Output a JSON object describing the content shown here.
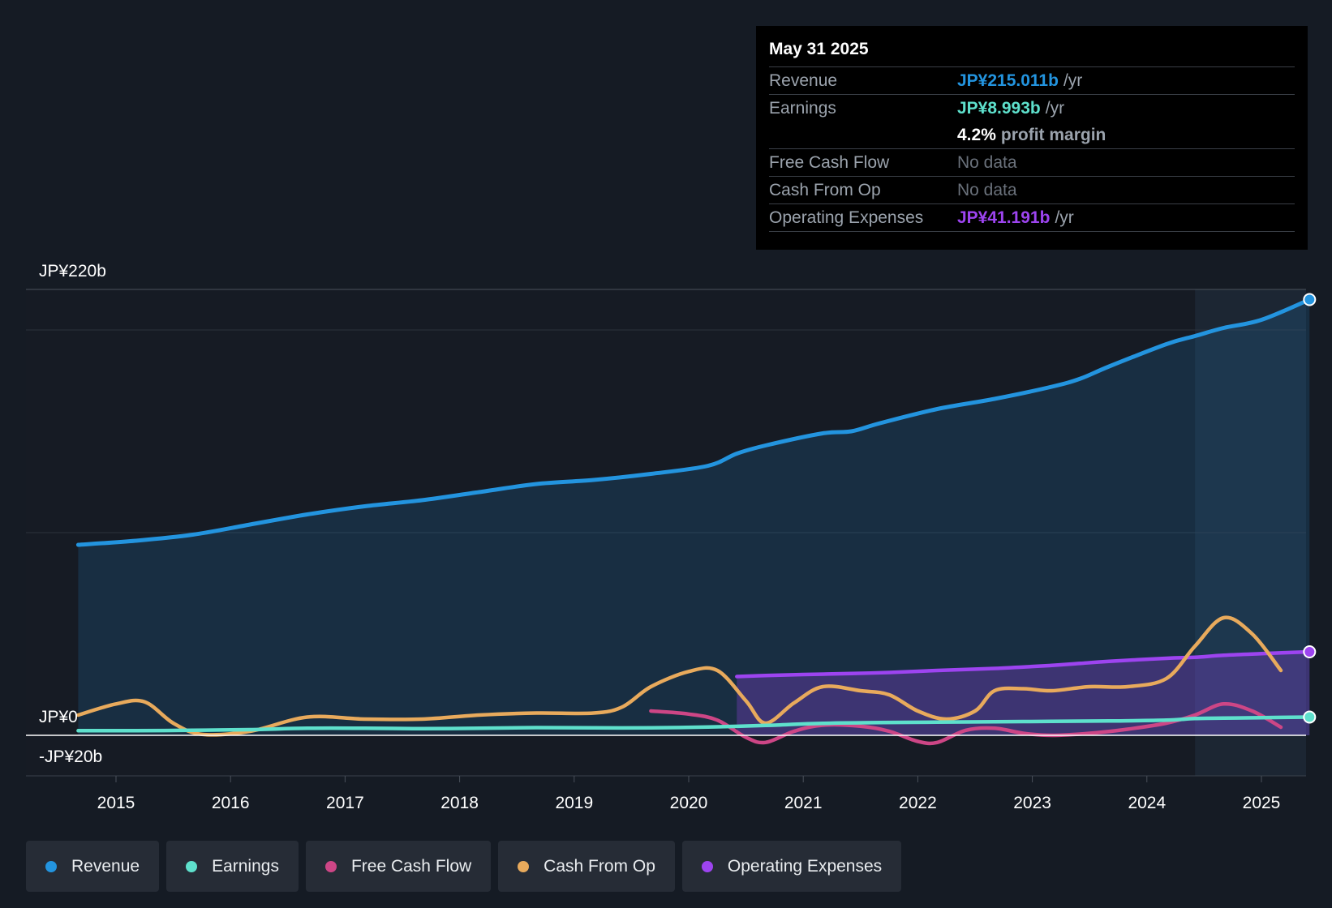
{
  "tooltip": {
    "date": "May 31 2025",
    "revenue": {
      "label": "Revenue",
      "value": "JP¥215.011b",
      "unit": "/yr"
    },
    "earnings": {
      "label": "Earnings",
      "value": "JP¥8.993b",
      "unit": "/yr"
    },
    "margin": {
      "value": "4.2%",
      "text": "profit margin"
    },
    "fcf": {
      "label": "Free Cash Flow",
      "value": "No data"
    },
    "cfo": {
      "label": "Cash From Op",
      "value": "No data"
    },
    "opex": {
      "label": "Operating Expenses",
      "value": "JP¥41.191b",
      "unit": "/yr"
    }
  },
  "legend": {
    "revenue": "Revenue",
    "earnings": "Earnings",
    "fcf": "Free Cash Flow",
    "cfo": "Cash From Op",
    "opex": "Operating Expenses"
  },
  "colors": {
    "revenue": "#2394df",
    "earnings": "#5ee0cc",
    "fcf": "#cd4686",
    "cfo": "#e8aa5c",
    "opex": "#9d44f0"
  },
  "chart_data": {
    "type": "line",
    "title": "",
    "ylim": [
      -20,
      220
    ],
    "y_tick_labels": [
      "JP¥220b",
      "JP¥0",
      "-JP¥20b"
    ],
    "x_tick_labels": [
      "2015",
      "2016",
      "2017",
      "2018",
      "2019",
      "2020",
      "2021",
      "2022",
      "2023",
      "2024",
      "2025"
    ],
    "series": [
      {
        "name": "Revenue",
        "key": "revenue",
        "area": true,
        "end_marker": true,
        "x": [
          2014.67,
          2015.17,
          2015.67,
          2016.17,
          2016.67,
          2017.17,
          2017.67,
          2018.17,
          2018.67,
          2019.17,
          2019.67,
          2020.17,
          2020.42,
          2020.67,
          2021.17,
          2021.42,
          2021.67,
          2022.17,
          2022.67,
          2023.17,
          2023.42,
          2023.67,
          2024.17,
          2024.42,
          2024.67,
          2025.0,
          2025.42
        ],
        "values": [
          94,
          96,
          99,
          104,
          109,
          113,
          116,
          120,
          124,
          126,
          129,
          133,
          139,
          143,
          149,
          150,
          154,
          161,
          166,
          172,
          176,
          182,
          193,
          197,
          201,
          205,
          215
        ]
      },
      {
        "name": "Earnings",
        "key": "earnings",
        "end_marker": true,
        "x": [
          2014.67,
          2015.17,
          2015.67,
          2016.17,
          2016.67,
          2017.17,
          2017.67,
          2018.17,
          2018.67,
          2019.17,
          2019.67,
          2020.17,
          2020.67,
          2021.17,
          2021.67,
          2022.17,
          2022.67,
          2023.17,
          2023.67,
          2024.17,
          2024.42,
          2024.67,
          2025.0,
          2025.42
        ],
        "values": [
          2.3,
          2.3,
          2.5,
          2.8,
          3.5,
          3.5,
          3.3,
          3.5,
          3.8,
          3.7,
          3.7,
          4.1,
          4.9,
          5.9,
          6.3,
          6.5,
          6.7,
          6.9,
          7.1,
          7.5,
          8.3,
          8.5,
          8.7,
          9.0
        ]
      },
      {
        "name": "Free Cash Flow",
        "key": "fcf",
        "x": [
          2019.67,
          2020.0,
          2020.25,
          2020.5,
          2020.67,
          2020.92,
          2021.17,
          2021.5,
          2021.75,
          2022.0,
          2022.17,
          2022.42,
          2022.67,
          2022.92,
          2023.17,
          2023.5,
          2023.83,
          2024.17,
          2024.42,
          2024.67,
          2024.92,
          2025.17
        ],
        "values": [
          12,
          10.5,
          7.5,
          -1,
          -3.5,
          2,
          5,
          4.5,
          2,
          -3,
          -3.5,
          2.5,
          3.5,
          1,
          0,
          1,
          3,
          6,
          10,
          15.5,
          12,
          4
        ]
      },
      {
        "name": "Cash From Op",
        "key": "cfo",
        "x": [
          2014.67,
          2015.0,
          2015.25,
          2015.5,
          2015.75,
          2016.17,
          2016.67,
          2017.17,
          2017.67,
          2018.17,
          2018.67,
          2019.17,
          2019.42,
          2019.67,
          2020.0,
          2020.25,
          2020.5,
          2020.67,
          2020.92,
          2021.17,
          2021.5,
          2021.75,
          2022.0,
          2022.25,
          2022.5,
          2022.67,
          2022.92,
          2023.17,
          2023.5,
          2023.83,
          2024.17,
          2024.42,
          2024.67,
          2024.92,
          2025.17
        ],
        "values": [
          10,
          15.5,
          16.5,
          6,
          0.5,
          2,
          9,
          8,
          8,
          10,
          11,
          11,
          14,
          24,
          31.5,
          32,
          17,
          6,
          16,
          24,
          22,
          20,
          12,
          8,
          12,
          22,
          23,
          22,
          24,
          24,
          28,
          44,
          58,
          50,
          32
        ]
      },
      {
        "name": "Operating Expenses",
        "key": "opex",
        "area": true,
        "end_marker": true,
        "x": [
          2020.42,
          2020.67,
          2021.0,
          2021.42,
          2021.75,
          2022.17,
          2022.67,
          2023.17,
          2023.42,
          2023.67,
          2024.17,
          2024.42,
          2024.67,
          2025.0,
          2025.42
        ],
        "values": [
          29,
          29.5,
          30,
          30.5,
          31,
          32,
          33,
          34.5,
          35.5,
          36.5,
          38,
          38.5,
          39.5,
          40.3,
          41.2
        ]
      }
    ],
    "forecast_shaded_from": 2024.42,
    "annotation": {
      "x": 2025.42,
      "label": "May 31 2025"
    }
  }
}
